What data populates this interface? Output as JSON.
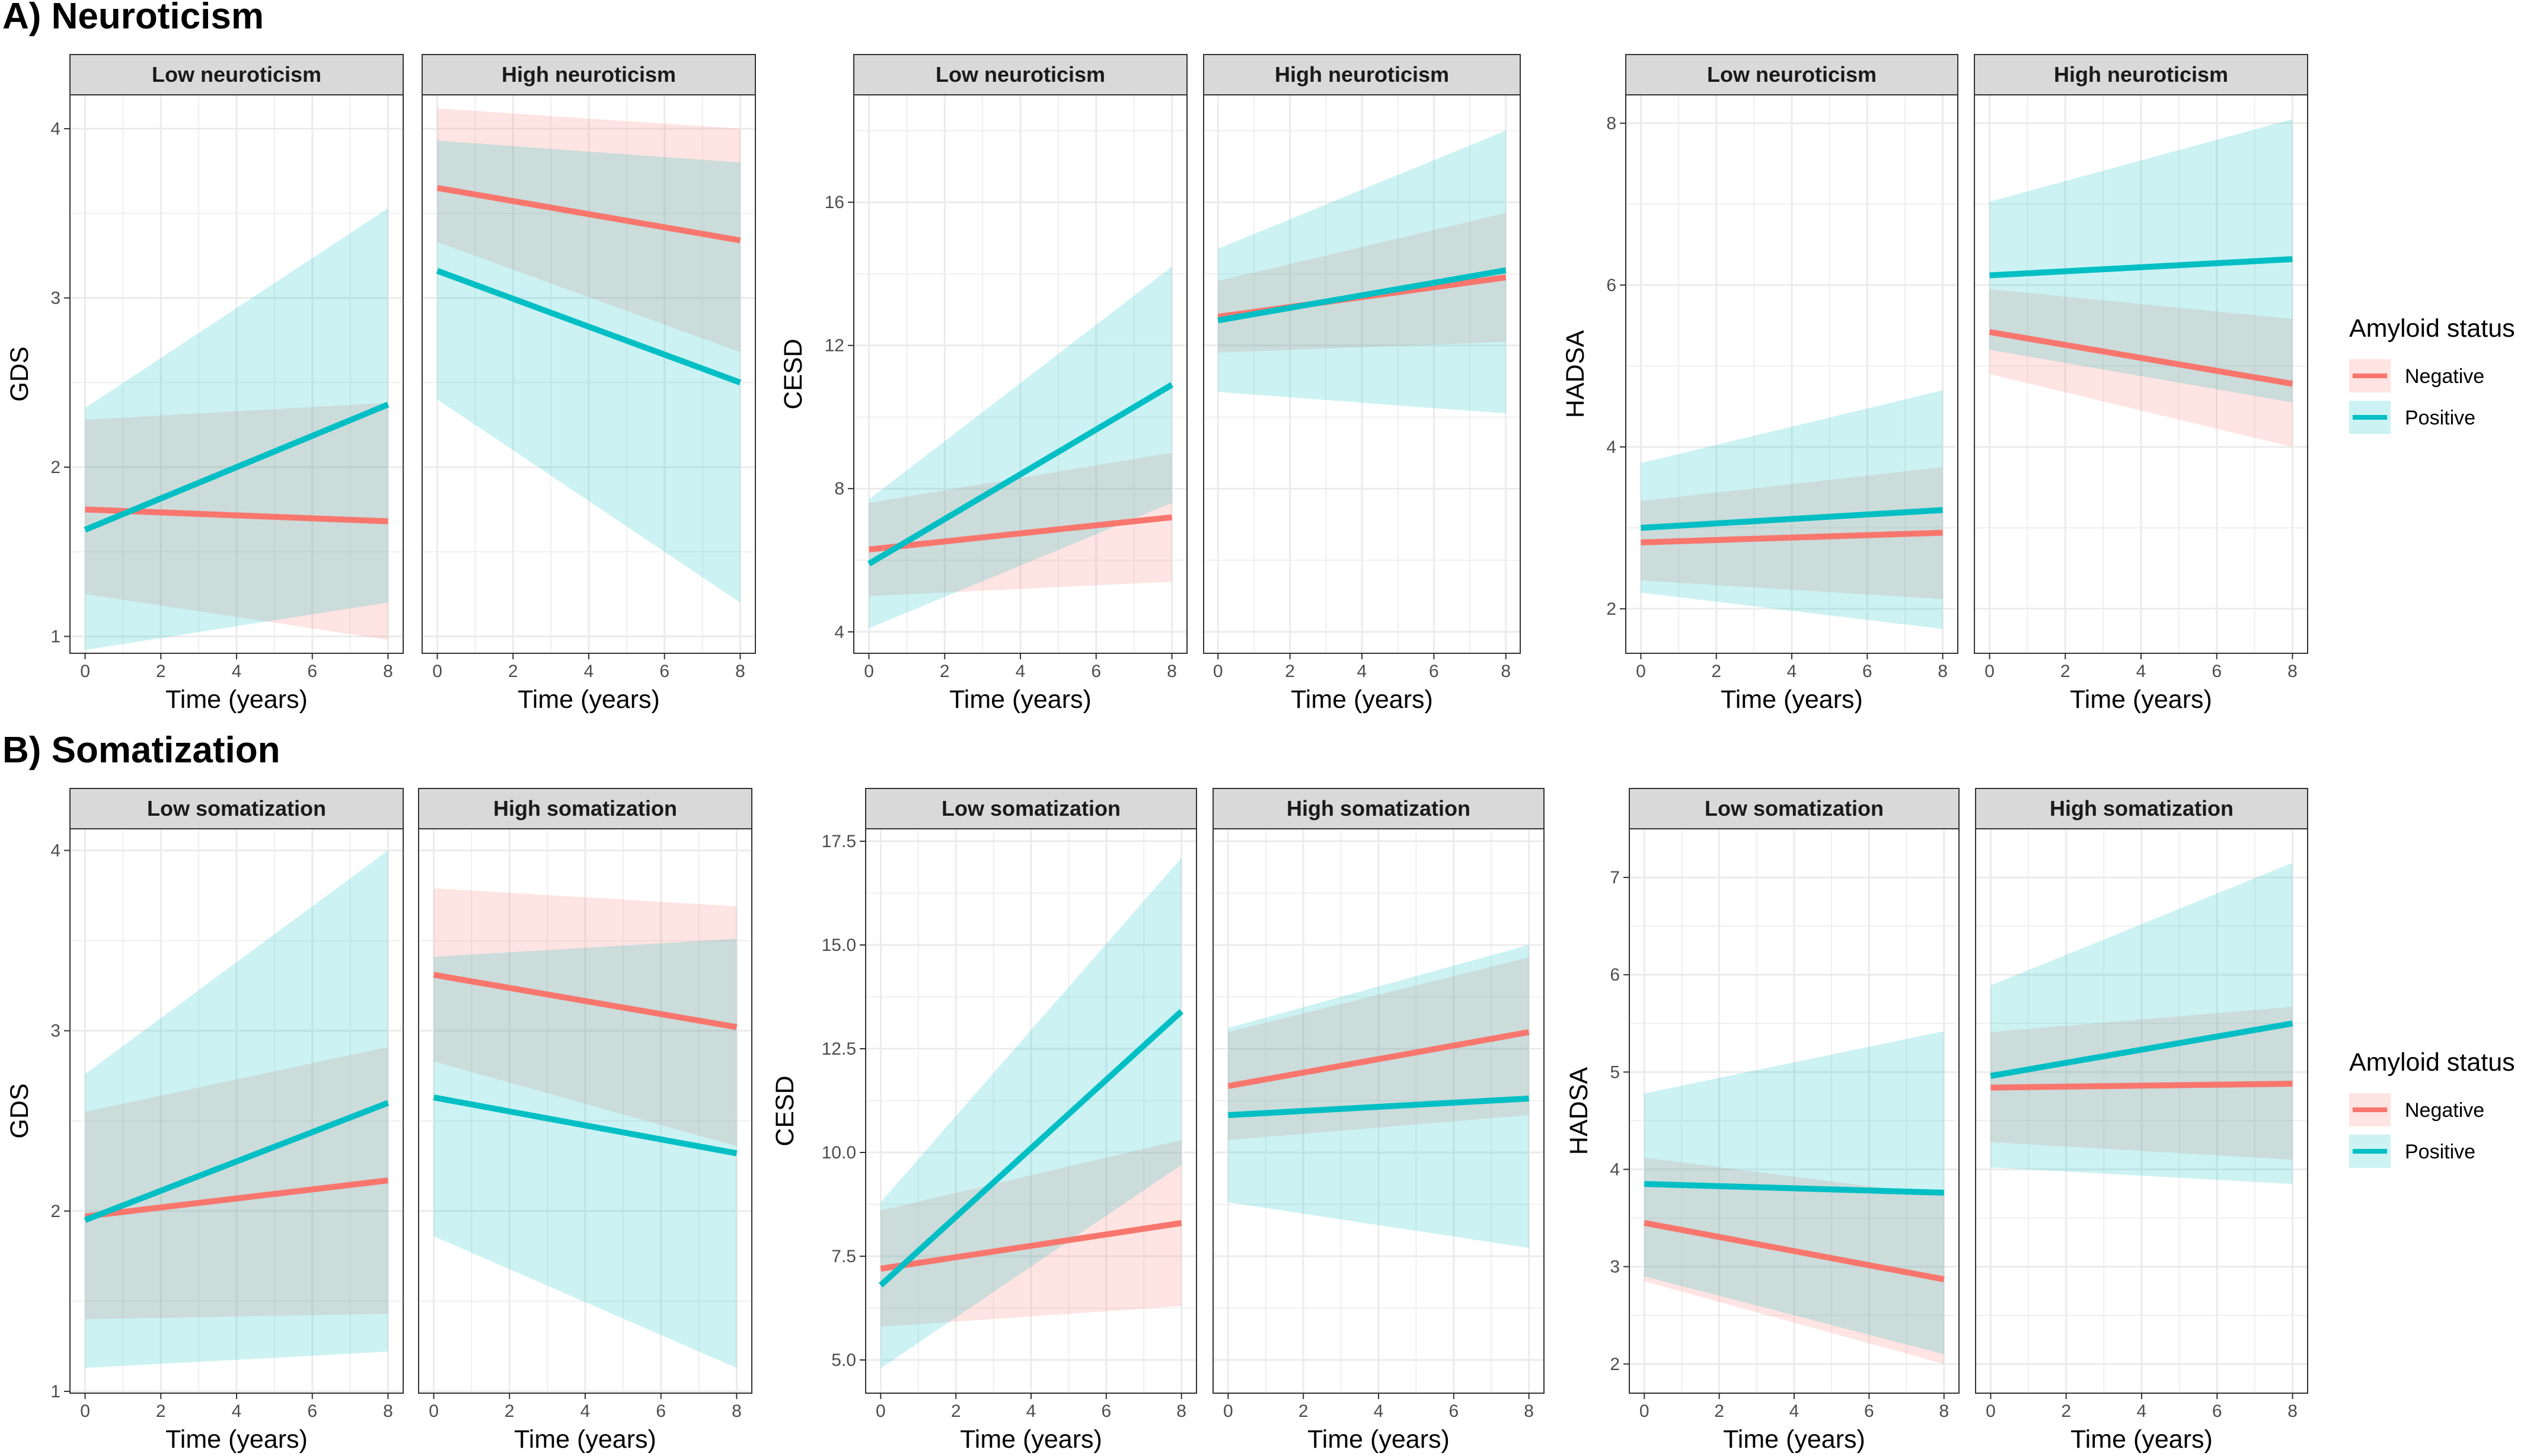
{
  "figure": {
    "colors": {
      "negative": "#F8766D",
      "positive": "#00BFC4",
      "grid": "#EBEBEB",
      "strip": "#D9D9D9",
      "panel_border": "#333333"
    },
    "legend": {
      "title": "Amyloid status",
      "items": [
        "Negative",
        "Positive"
      ]
    }
  },
  "chart_data": [
    {
      "type": "line",
      "section": "A) Neuroticism",
      "ylabel": "GDS",
      "xlabel": "Time (years)",
      "ylim": [
        0.9,
        4.2
      ],
      "yticks": [
        1,
        2,
        3,
        4
      ],
      "ytick_labels": [
        "1",
        "2",
        "3",
        "4"
      ],
      "xlim": [
        -0.4,
        8.4
      ],
      "xticks": [
        0,
        2,
        4,
        6,
        8
      ],
      "xtick_labels": [
        "0",
        "2",
        "4",
        "6",
        "8"
      ],
      "facets": [
        {
          "label": "Low neuroticism",
          "series": [
            {
              "name": "Negative",
              "x": [
                0,
                8
              ],
              "y": [
                1.75,
                1.68
              ],
              "lower": [
                1.25,
                0.98
              ],
              "upper": [
                2.28,
                2.38
              ]
            },
            {
              "name": "Positive",
              "x": [
                0,
                8
              ],
              "y": [
                1.63,
                2.37
              ],
              "lower": [
                0.92,
                1.2
              ],
              "upper": [
                2.35,
                3.53
              ]
            }
          ]
        },
        {
          "label": "High neuroticism",
          "series": [
            {
              "name": "Negative",
              "x": [
                0,
                8
              ],
              "y": [
                3.65,
                3.34
              ],
              "lower": [
                3.33,
                2.68
              ],
              "upper": [
                4.12,
                4.0
              ]
            },
            {
              "name": "Positive",
              "x": [
                0,
                8
              ],
              "y": [
                3.16,
                2.5
              ],
              "lower": [
                2.4,
                1.2
              ],
              "upper": [
                3.93,
                3.8
              ]
            }
          ]
        }
      ]
    },
    {
      "type": "line",
      "section": "A) Neuroticism",
      "ylabel": "CESD",
      "xlabel": "Time (years)",
      "ylim": [
        3.4,
        19.0
      ],
      "yticks": [
        4,
        8,
        12,
        16
      ],
      "ytick_labels": [
        "4",
        "8",
        "12",
        "16"
      ],
      "xlim": [
        -0.4,
        8.4
      ],
      "xticks": [
        0,
        2,
        4,
        6,
        8
      ],
      "xtick_labels": [
        "0",
        "2",
        "4",
        "6",
        "8"
      ],
      "facets": [
        {
          "label": "Low neuroticism",
          "series": [
            {
              "name": "Negative",
              "x": [
                0,
                8
              ],
              "y": [
                6.3,
                7.2
              ],
              "lower": [
                5.0,
                5.4
              ],
              "upper": [
                7.6,
                9.0
              ]
            },
            {
              "name": "Positive",
              "x": [
                0,
                8
              ],
              "y": [
                5.9,
                10.9
              ],
              "lower": [
                4.1,
                7.6
              ],
              "upper": [
                7.7,
                14.2
              ]
            }
          ]
        },
        {
          "label": "High neuroticism",
          "series": [
            {
              "name": "Negative",
              "x": [
                0,
                8
              ],
              "y": [
                12.8,
                13.9
              ],
              "lower": [
                11.8,
                12.1
              ],
              "upper": [
                13.8,
                15.7
              ]
            },
            {
              "name": "Positive",
              "x": [
                0,
                8
              ],
              "y": [
                12.7,
                14.1
              ],
              "lower": [
                10.7,
                10.1
              ],
              "upper": [
                14.7,
                18.0
              ]
            }
          ]
        }
      ]
    },
    {
      "type": "line",
      "section": "A) Neuroticism",
      "ylabel": "HADSA",
      "xlabel": "Time (years)",
      "ylim": [
        1.45,
        8.35
      ],
      "yticks": [
        2,
        4,
        6,
        8
      ],
      "ytick_labels": [
        "2",
        "4",
        "6",
        "8"
      ],
      "xlim": [
        -0.4,
        8.4
      ],
      "xticks": [
        0,
        2,
        4,
        6,
        8
      ],
      "xtick_labels": [
        "0",
        "2",
        "4",
        "6",
        "8"
      ],
      "facets": [
        {
          "label": "Low neuroticism",
          "series": [
            {
              "name": "Negative",
              "x": [
                0,
                8
              ],
              "y": [
                2.82,
                2.94
              ],
              "lower": [
                2.35,
                2.12
              ],
              "upper": [
                3.33,
                3.75
              ]
            },
            {
              "name": "Positive",
              "x": [
                0,
                8
              ],
              "y": [
                3.0,
                3.22
              ],
              "lower": [
                2.2,
                1.75
              ],
              "upper": [
                3.8,
                4.7
              ]
            }
          ]
        },
        {
          "label": "High neuroticism",
          "series": [
            {
              "name": "Negative",
              "x": [
                0,
                8
              ],
              "y": [
                5.42,
                4.78
              ],
              "lower": [
                4.9,
                4.0
              ],
              "upper": [
                5.95,
                5.58
              ]
            },
            {
              "name": "Positive",
              "x": [
                0,
                8
              ],
              "y": [
                6.12,
                6.32
              ],
              "lower": [
                5.2,
                4.55
              ],
              "upper": [
                7.03,
                8.05
              ]
            }
          ]
        }
      ]
    },
    {
      "type": "line",
      "section": "B) Somatization",
      "ylabel": "GDS",
      "xlabel": "Time (years)",
      "ylim": [
        0.99,
        4.12
      ],
      "yticks": [
        1,
        2,
        3,
        4
      ],
      "ytick_labels": [
        "1",
        "2",
        "3",
        "4"
      ],
      "xlim": [
        -0.4,
        8.4
      ],
      "xticks": [
        0,
        2,
        4,
        6,
        8
      ],
      "xtick_labels": [
        "0",
        "2",
        "4",
        "6",
        "8"
      ],
      "facets": [
        {
          "label": "Low somatization",
          "series": [
            {
              "name": "Negative",
              "x": [
                0,
                8
              ],
              "y": [
                1.97,
                2.17
              ],
              "lower": [
                1.4,
                1.43
              ],
              "upper": [
                2.55,
                2.91
              ]
            },
            {
              "name": "Positive",
              "x": [
                0,
                8
              ],
              "y": [
                1.95,
                2.6
              ],
              "lower": [
                1.13,
                1.22
              ],
              "upper": [
                2.76,
                4.0
              ]
            }
          ]
        },
        {
          "label": "High somatization",
          "series": [
            {
              "name": "Negative",
              "x": [
                0,
                8
              ],
              "y": [
                3.31,
                3.02
              ],
              "lower": [
                2.83,
                2.36
              ],
              "upper": [
                3.79,
                3.69
              ]
            },
            {
              "name": "Positive",
              "x": [
                0,
                8
              ],
              "y": [
                2.63,
                2.32
              ],
              "lower": [
                1.86,
                1.13
              ],
              "upper": [
                3.41,
                3.51
              ]
            }
          ]
        }
      ]
    },
    {
      "type": "line",
      "section": "B) Somatization",
      "ylabel": "CESD",
      "xlabel": "Time (years)",
      "ylim": [
        4.2,
        17.8
      ],
      "yticks": [
        5.0,
        7.5,
        10.0,
        12.5,
        15.0,
        17.5
      ],
      "ytick_labels": [
        "5.0",
        "7.5",
        "10.0",
        "12.5",
        "15.0",
        "17.5"
      ],
      "xlim": [
        -0.4,
        8.4
      ],
      "xticks": [
        0,
        2,
        4,
        6,
        8
      ],
      "xtick_labels": [
        "0",
        "2",
        "4",
        "6",
        "8"
      ],
      "facets": [
        {
          "label": "Low somatization",
          "series": [
            {
              "name": "Negative",
              "x": [
                0,
                8
              ],
              "y": [
                7.2,
                8.3
              ],
              "lower": [
                5.8,
                6.3
              ],
              "upper": [
                8.6,
                10.3
              ]
            },
            {
              "name": "Positive",
              "x": [
                0,
                8
              ],
              "y": [
                6.8,
                13.4
              ],
              "lower": [
                4.8,
                9.7
              ],
              "upper": [
                8.8,
                17.1
              ]
            }
          ]
        },
        {
          "label": "High somatization",
          "series": [
            {
              "name": "Negative",
              "x": [
                0,
                8
              ],
              "y": [
                11.6,
                12.9
              ],
              "lower": [
                10.3,
                10.9
              ],
              "upper": [
                12.9,
                14.7
              ]
            },
            {
              "name": "Positive",
              "x": [
                0,
                8
              ],
              "y": [
                10.9,
                11.3
              ],
              "lower": [
                8.8,
                7.7
              ],
              "upper": [
                13.0,
                15.0
              ]
            }
          ]
        }
      ]
    },
    {
      "type": "line",
      "section": "B) Somatization",
      "ylabel": "HADSA",
      "xlabel": "Time (years)",
      "ylim": [
        1.7,
        7.5
      ],
      "yticks": [
        2,
        3,
        4,
        5,
        6,
        7
      ],
      "ytick_labels": [
        "2",
        "3",
        "4",
        "5",
        "6",
        "7"
      ],
      "xlim": [
        -0.4,
        8.4
      ],
      "xticks": [
        0,
        2,
        4,
        6,
        8
      ],
      "xtick_labels": [
        "0",
        "2",
        "4",
        "6",
        "8"
      ],
      "facets": [
        {
          "label": "Low somatization",
          "series": [
            {
              "name": "Negative",
              "x": [
                0,
                8
              ],
              "y": [
                3.45,
                2.87
              ],
              "lower": [
                2.85,
                2.0
              ],
              "upper": [
                4.12,
                3.73
              ]
            },
            {
              "name": "Positive",
              "x": [
                0,
                8
              ],
              "y": [
                3.85,
                3.76
              ],
              "lower": [
                2.9,
                2.1
              ],
              "upper": [
                4.78,
                5.42
              ]
            }
          ]
        },
        {
          "label": "High somatization",
          "series": [
            {
              "name": "Negative",
              "x": [
                0,
                8
              ],
              "y": [
                4.84,
                4.88
              ],
              "lower": [
                4.28,
                4.1
              ],
              "upper": [
                5.41,
                5.67
              ]
            },
            {
              "name": "Positive",
              "x": [
                0,
                8
              ],
              "y": [
                4.96,
                5.5
              ],
              "lower": [
                4.02,
                3.85
              ],
              "upper": [
                5.89,
                7.15
              ]
            }
          ]
        }
      ]
    }
  ]
}
